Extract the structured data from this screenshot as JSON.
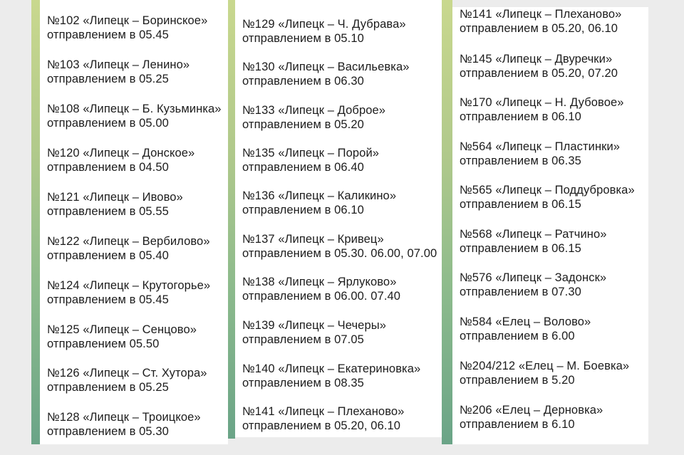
{
  "columns": [
    {
      "items": [
        {
          "route": "№102 «Липецк – Боринское»",
          "departure": "отправлением в 05.45"
        },
        {
          "route": "№103 «Липецк – Ленино»",
          "departure": "отправлением в 05.25"
        },
        {
          "route": "№108 «Липецк – Б. Кузьминка»",
          "departure": "отправлением в 05.00"
        },
        {
          "route": "№120 «Липецк – Донское»",
          "departure": "отправлением в 04.50"
        },
        {
          "route": "№121 «Липецк – Ивово»",
          "departure": "отправлением в 05.55"
        },
        {
          "route": "№122 «Липецк – Вербилово»",
          "departure": "отправлением в 05.40"
        },
        {
          "route": "№124 «Липецк – Крутогорье»",
          "departure": "отправлением в 05.45"
        },
        {
          "route": "№125 «Липецк – Сенцово»",
          "departure": "отправлением 05.50"
        },
        {
          "route": "№126 «Липецк – Ст. Хутора»",
          "departure": "отправлением в 05.25"
        },
        {
          "route": "№128 «Липецк – Троицкое»",
          "departure": "отправлением в 05.30"
        }
      ]
    },
    {
      "items": [
        {
          "route": "№129 «Липецк – Ч. Дубрава»",
          "departure": "отправлением в 05.10"
        },
        {
          "route": "№130 «Липецк – Васильевка»",
          "departure": "отправлением в 06.30"
        },
        {
          "route": "№133 «Липецк – Доброе»",
          "departure": "отправлением в 05.20"
        },
        {
          "route": "№135 «Липецк – Порой»",
          "departure": "отправлением в 06.40"
        },
        {
          "route": "№136 «Липецк – Каликино»",
          "departure": "отправлением в  06.10"
        },
        {
          "route": "№137 «Липецк – Кривец»",
          "departure": "отправлением в 05.30. 06.00, 07.00"
        },
        {
          "route": "№138 «Липецк – Ярлуково»",
          "departure": "отправлением в 06.00. 07.40"
        },
        {
          "route": "№139 «Липецк – Чечеры»",
          "departure": "отправлением в 07.05"
        },
        {
          "route": "№140 «Липецк – Екатериновка»",
          "departure": "отправлением в 08.35"
        },
        {
          "route": "№141 «Липецк – Плеханово»",
          "departure": "отправлением в 05.20, 06.10"
        }
      ]
    },
    {
      "items": [
        {
          "route": "№141 «Липецк – Плеханово»",
          "departure": "отправлением в 05.20, 06.10"
        },
        {
          "route": "№145 «Липецк – Двуречки»",
          "departure": "отправлением в 05.20, 07.20"
        },
        {
          "route": "№170 «Липецк – Н. Дубовое»",
          "departure": "отправлением в 06.10"
        },
        {
          "route": "№564 «Липецк – Пластинки»",
          "departure": "отправлением в 06.35"
        },
        {
          "route": "№565 «Липецк – Поддубровка»",
          "departure": "отправлением в 06.15"
        },
        {
          "route": "№568 «Липецк – Ратчино»",
          "departure": "отправлением в 06.15"
        },
        {
          "route": "№576 «Липецк – Задонск»",
          "departure": "отправлением в 07.30"
        },
        {
          "route": "№584 «Елец – Волово»",
          "departure": "отправлением в 6.00"
        },
        {
          "route": "№204/212 «Елец – М. Боевка»",
          "departure": "отправлением в 5.20"
        },
        {
          "route": "№206 «Елец – Дерновка»",
          "departure": "отправлением в 6.10"
        }
      ]
    }
  ]
}
